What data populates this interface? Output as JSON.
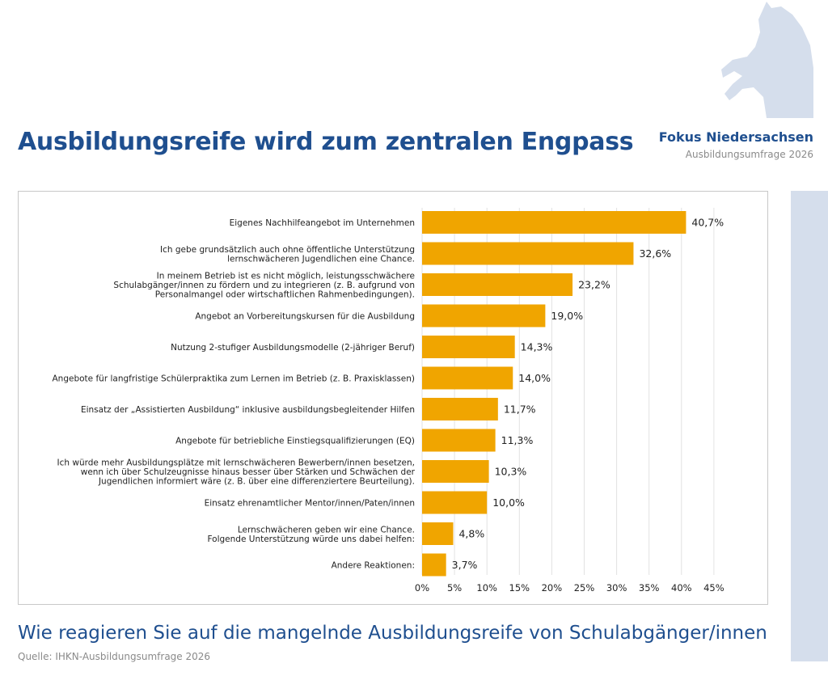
{
  "header": {
    "title": "Ausbildungsreife wird zum zentralen Engpass",
    "brand_name": "Fokus Niedersachsen",
    "brand_sub": "Ausbildungsumfrage 2026",
    "logo_icon": "horse-icon",
    "logo_color": "#d5deec"
  },
  "footer": {
    "question": "Wie reagieren Sie auf die mangelnde Ausbildungsreife von Schulabgänger/innen",
    "source": "Quelle: IHKN-Ausbildungsumfrage 2026"
  },
  "colors": {
    "bar": "#f0a500",
    "title": "#1f4f8f",
    "grid": "#e2e2e2",
    "text": "#222222"
  },
  "chart_data": {
    "type": "bar",
    "orientation": "horizontal",
    "title": "",
    "xlabel": "",
    "ylabel": "",
    "xlim": [
      0,
      45
    ],
    "grid": "vertical",
    "legend": "none",
    "categories": [
      [
        "Eigenes Nachhilfeangebot im Unternehmen"
      ],
      [
        "Ich gebe grundsätzlich auch ohne öffentliche Unterstützung",
        "lernschwächeren Jugendlichen eine Chance."
      ],
      [
        "In meinem Betrieb ist es nicht möglich, leistungsschwächere",
        "Schulabgänger/innen zu fördern und zu integrieren (z. B. aufgrund von",
        "Personalmangel oder wirtschaftlichen Rahmenbedingungen)."
      ],
      [
        "Angebot an Vorbereitungskursen für die Ausbildung"
      ],
      [
        "Nutzung 2-stufiger Ausbildungsmodelle (2-jähriger Beruf)"
      ],
      [
        "Angebote für langfristige Schülerpraktika zum Lernen im Betrieb (z. B. Praxisklassen)"
      ],
      [
        "Einsatz der „Assistierten Ausbildung“ inklusive ausbildungsbegleitender Hilfen"
      ],
      [
        "Angebote für betriebliche Einstiegsqualifizierungen (EQ)"
      ],
      [
        "Ich würde mehr Ausbildungsplätze mit lernschwächeren Bewerbern/innen besetzen,",
        "wenn ich über Schulzeugnisse hinaus besser über Stärken und Schwächen der",
        "Jugendlichen informiert wäre (z. B. über eine differenziertere Beurteilung)."
      ],
      [
        "Einsatz ehrenamtlicher Mentor/innen/Paten/innen"
      ],
      [
        "Lernschwächeren geben wir eine Chance.",
        "Folgende Unterstützung würde uns dabei helfen:"
      ],
      [
        "Andere Reaktionen:"
      ]
    ],
    "values": [
      40.7,
      32.6,
      23.2,
      19.0,
      14.3,
      14.0,
      11.7,
      11.3,
      10.3,
      10.0,
      4.8,
      3.7
    ],
    "value_labels": [
      "40,7%",
      "32,6%",
      "23,2%",
      "19,0%",
      "14,3%",
      "14,0%",
      "11,7%",
      "11,3%",
      "10,3%",
      "10,0%",
      "4,8%",
      "3,7%"
    ],
    "ticks": [
      0,
      5,
      10,
      15,
      20,
      25,
      30,
      35,
      40,
      45
    ],
    "tick_labels": [
      "0%",
      "5%",
      "10%",
      "15%",
      "20%",
      "25%",
      "30%",
      "35%",
      "40%",
      "45%"
    ]
  }
}
